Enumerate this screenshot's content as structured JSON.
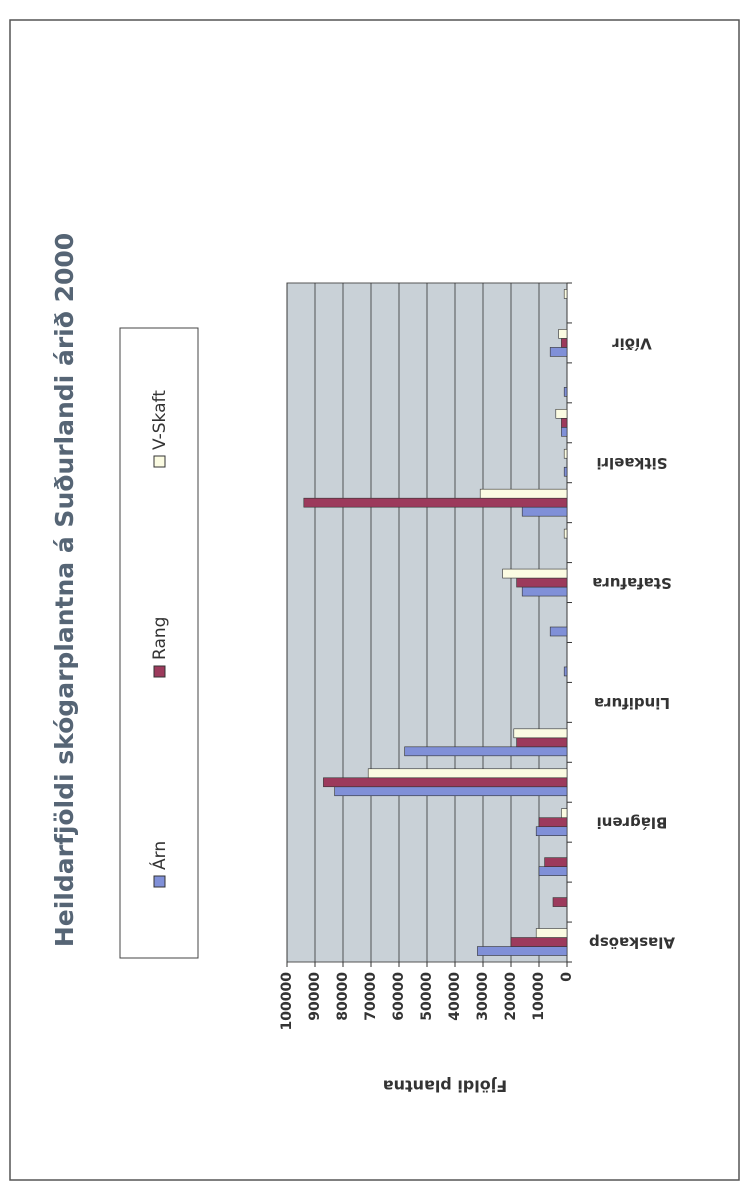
{
  "chart_data": {
    "type": "bar",
    "orientation": "horizontal",
    "rotated_page": true,
    "title": "Heildarfjöldi skógarplantna á Suðurlandi árið 2000",
    "y_label": "Fjöldi plantna",
    "categories": [
      "Alaskaösp",
      null,
      null,
      "Blágreni",
      null,
      null,
      "Lindifura",
      null,
      null,
      "Stafafura",
      null,
      null,
      "Sitkaelri",
      null,
      null,
      "Víðir",
      null
    ],
    "series": [
      {
        "name": "Árn",
        "color": "#8090d8",
        "values": [
          32000,
          0,
          10000,
          11000,
          83000,
          58000,
          0,
          1000,
          6000,
          16000,
          0,
          16000,
          1000,
          2000,
          1000,
          6000,
          0
        ]
      },
      {
        "name": "Rang",
        "color": "#9c3a5c",
        "values": [
          20000,
          5000,
          8000,
          10000,
          87000,
          18000,
          0,
          0,
          0,
          18000,
          0,
          94000,
          0,
          2000,
          0,
          2000,
          0
        ]
      },
      {
        "name": "V-Skaft",
        "color": "#fbfbe2",
        "values": [
          11000,
          0,
          0,
          2000,
          71000,
          19000,
          0,
          0,
          0,
          23000,
          1000,
          31000,
          1000,
          4000,
          0,
          3000,
          1000
        ]
      }
    ],
    "ylim": [
      0,
      100000
    ],
    "yticks": [
      0,
      10000,
      20000,
      30000,
      40000,
      50000,
      60000,
      70000,
      80000,
      90000,
      100000
    ],
    "grid": true,
    "plot_background": "#c9d1d7"
  }
}
